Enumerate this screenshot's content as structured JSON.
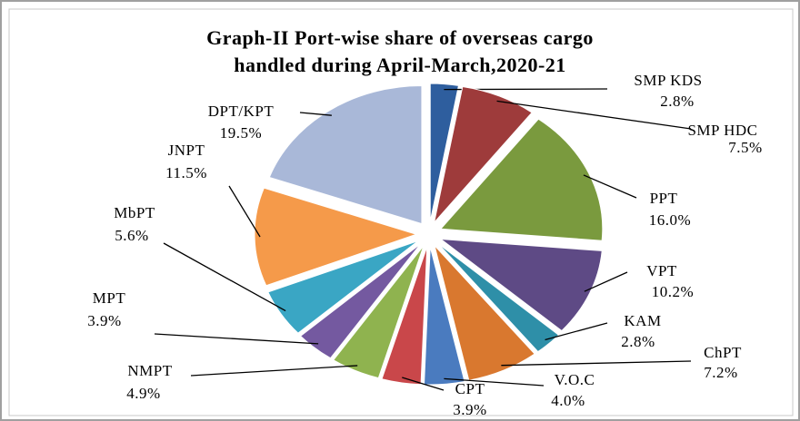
{
  "chart_data": {
    "type": "pie",
    "title": [
      "Graph-II Port-wise share of  overseas cargo",
      "handled during April-March,2020-21"
    ],
    "categories": [
      "SMP KDS",
      "SMP HDC",
      "PPT",
      "VPT",
      "KAM",
      "ChPT",
      "V.O.C",
      "CPT",
      "NMPT",
      "MPT",
      "MbPT",
      "JNPT",
      "DPT/KPT"
    ],
    "values": [
      2.8,
      7.5,
      16.0,
      10.2,
      2.8,
      7.2,
      4.0,
      3.9,
      4.9,
      3.9,
      5.6,
      11.5,
      19.5
    ],
    "value_labels": [
      "2.8%",
      "7.5%",
      "16.0%",
      "10.2%",
      "2.8%",
      "7.2%",
      "4.0%",
      "3.9%",
      "4.9%",
      "3.9%",
      "5.6%",
      "11.5%",
      "19.5%"
    ],
    "colors": [
      "#2e5e9e",
      "#9e3b3b",
      "#7a9a3e",
      "#5e4a85",
      "#2e8fa8",
      "#d9782f",
      "#4a7bbf",
      "#c9474a",
      "#8fb34f",
      "#7459a0",
      "#3aa6c4",
      "#f59a4a",
      "#a9b8d8"
    ]
  }
}
